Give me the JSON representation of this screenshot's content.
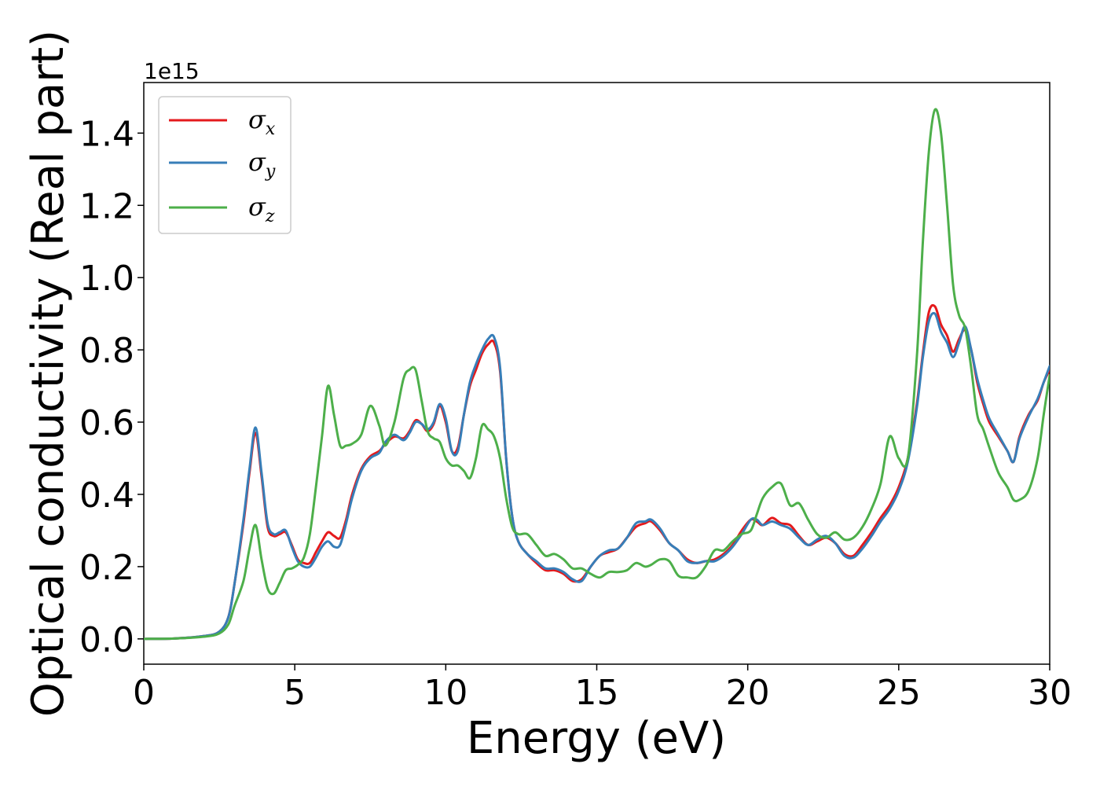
{
  "chart_data": {
    "type": "line",
    "xlabel": "Energy (eV)",
    "ylabel": "Optical conductivity (Real part)",
    "y_offset_label": "1e15",
    "xlim": [
      0,
      30
    ],
    "ylim": [
      -0.07,
      1.54
    ],
    "xticks": [
      0,
      5,
      10,
      15,
      20,
      25,
      30
    ],
    "xtick_labels": [
      "0",
      "5",
      "10",
      "15",
      "20",
      "25",
      "30"
    ],
    "yticks": [
      0.0,
      0.2,
      0.4,
      0.6,
      0.8,
      1.0,
      1.2,
      1.4
    ],
    "ytick_labels": [
      "0.0",
      "0.2",
      "0.4",
      "0.6",
      "0.8",
      "1.0",
      "1.2",
      "1.4"
    ],
    "grid": false,
    "legend_position": "top-left",
    "series": [
      {
        "name": "σx",
        "symbol": "σ",
        "subscript": "x",
        "color": "#e41a1c",
        "x": [
          0,
          1,
          2,
          2.5,
          2.8,
          3.0,
          3.3,
          3.5,
          3.7,
          3.9,
          4.1,
          4.3,
          4.5,
          4.7,
          4.9,
          5.1,
          5.3,
          5.5,
          5.7,
          5.9,
          6.1,
          6.3,
          6.5,
          6.7,
          6.9,
          7.2,
          7.5,
          7.8,
          8.0,
          8.3,
          8.6,
          8.8,
          9.0,
          9.2,
          9.4,
          9.6,
          9.8,
          10.0,
          10.2,
          10.4,
          10.6,
          10.8,
          11.0,
          11.2,
          11.4,
          11.6,
          11.8,
          12.0,
          12.2,
          12.4,
          12.7,
          13.0,
          13.3,
          13.6,
          13.9,
          14.2,
          14.5,
          14.8,
          15.1,
          15.4,
          15.7,
          16.0,
          16.3,
          16.6,
          16.8,
          17.1,
          17.4,
          17.7,
          18.0,
          18.3,
          18.6,
          18.9,
          19.2,
          19.5,
          19.8,
          20.1,
          20.3,
          20.5,
          20.8,
          21.1,
          21.4,
          21.7,
          22.0,
          22.3,
          22.6,
          22.9,
          23.2,
          23.5,
          23.8,
          24.1,
          24.4,
          24.7,
          25.0,
          25.3,
          25.6,
          25.8,
          26.0,
          26.2,
          26.4,
          26.6,
          26.8,
          27.0,
          27.2,
          27.4,
          27.6,
          27.8,
          28.0,
          28.3,
          28.6,
          28.8,
          29.0,
          29.3,
          29.6,
          29.8,
          30.0
        ],
        "y": [
          0.0,
          0.001,
          0.008,
          0.02,
          0.06,
          0.15,
          0.32,
          0.46,
          0.57,
          0.45,
          0.31,
          0.285,
          0.29,
          0.295,
          0.26,
          0.22,
          0.21,
          0.21,
          0.24,
          0.27,
          0.295,
          0.285,
          0.28,
          0.33,
          0.4,
          0.47,
          0.505,
          0.52,
          0.54,
          0.56,
          0.555,
          0.575,
          0.605,
          0.595,
          0.575,
          0.595,
          0.645,
          0.6,
          0.52,
          0.53,
          0.62,
          0.7,
          0.745,
          0.79,
          0.815,
          0.82,
          0.74,
          0.5,
          0.34,
          0.27,
          0.235,
          0.21,
          0.19,
          0.19,
          0.18,
          0.16,
          0.165,
          0.2,
          0.23,
          0.24,
          0.25,
          0.28,
          0.31,
          0.32,
          0.325,
          0.3,
          0.265,
          0.245,
          0.22,
          0.21,
          0.215,
          0.22,
          0.235,
          0.26,
          0.3,
          0.33,
          0.325,
          0.315,
          0.335,
          0.32,
          0.315,
          0.285,
          0.26,
          0.27,
          0.28,
          0.265,
          0.235,
          0.23,
          0.26,
          0.295,
          0.335,
          0.37,
          0.42,
          0.5,
          0.65,
          0.79,
          0.905,
          0.92,
          0.87,
          0.84,
          0.795,
          0.83,
          0.855,
          0.8,
          0.71,
          0.65,
          0.6,
          0.56,
          0.52,
          0.49,
          0.56,
          0.62,
          0.66,
          0.71,
          0.745
        ]
      },
      {
        "name": "σy",
        "symbol": "σ",
        "subscript": "y",
        "color": "#377eb8",
        "x": [
          0,
          1,
          2,
          2.5,
          2.8,
          3.0,
          3.3,
          3.5,
          3.7,
          3.9,
          4.1,
          4.3,
          4.5,
          4.7,
          4.9,
          5.1,
          5.3,
          5.5,
          5.7,
          5.9,
          6.1,
          6.3,
          6.5,
          6.7,
          6.9,
          7.2,
          7.5,
          7.8,
          8.0,
          8.3,
          8.6,
          8.8,
          9.0,
          9.2,
          9.4,
          9.6,
          9.8,
          10.0,
          10.2,
          10.4,
          10.6,
          10.8,
          11.0,
          11.2,
          11.4,
          11.6,
          11.8,
          12.0,
          12.2,
          12.4,
          12.7,
          13.0,
          13.3,
          13.6,
          13.9,
          14.2,
          14.5,
          14.8,
          15.1,
          15.4,
          15.7,
          16.0,
          16.3,
          16.6,
          16.8,
          17.1,
          17.4,
          17.7,
          18.0,
          18.3,
          18.6,
          18.9,
          19.2,
          19.5,
          19.8,
          20.1,
          20.3,
          20.5,
          20.8,
          21.1,
          21.4,
          21.7,
          22.0,
          22.3,
          22.6,
          22.9,
          23.2,
          23.5,
          23.8,
          24.1,
          24.4,
          24.7,
          25.0,
          25.3,
          25.6,
          25.8,
          26.0,
          26.2,
          26.4,
          26.6,
          26.8,
          27.0,
          27.2,
          27.4,
          27.6,
          27.8,
          28.0,
          28.3,
          28.6,
          28.8,
          29.0,
          29.3,
          29.6,
          29.8,
          30.0
        ],
        "y": [
          0.0,
          0.001,
          0.008,
          0.02,
          0.06,
          0.15,
          0.33,
          0.47,
          0.585,
          0.46,
          0.32,
          0.29,
          0.295,
          0.3,
          0.255,
          0.215,
          0.2,
          0.2,
          0.225,
          0.255,
          0.27,
          0.255,
          0.26,
          0.32,
          0.39,
          0.465,
          0.5,
          0.515,
          0.545,
          0.565,
          0.55,
          0.57,
          0.6,
          0.595,
          0.58,
          0.6,
          0.65,
          0.61,
          0.52,
          0.52,
          0.62,
          0.71,
          0.76,
          0.8,
          0.83,
          0.835,
          0.75,
          0.5,
          0.34,
          0.27,
          0.235,
          0.215,
          0.195,
          0.195,
          0.185,
          0.165,
          0.16,
          0.2,
          0.23,
          0.245,
          0.25,
          0.28,
          0.32,
          0.325,
          0.33,
          0.305,
          0.265,
          0.245,
          0.215,
          0.21,
          0.215,
          0.215,
          0.23,
          0.255,
          0.29,
          0.33,
          0.33,
          0.315,
          0.325,
          0.315,
          0.305,
          0.28,
          0.26,
          0.275,
          0.285,
          0.265,
          0.23,
          0.225,
          0.25,
          0.285,
          0.325,
          0.36,
          0.41,
          0.49,
          0.64,
          0.78,
          0.88,
          0.9,
          0.85,
          0.82,
          0.78,
          0.82,
          0.865,
          0.8,
          0.72,
          0.66,
          0.61,
          0.565,
          0.52,
          0.49,
          0.555,
          0.615,
          0.665,
          0.71,
          0.755
        ]
      },
      {
        "name": "σz",
        "symbol": "σ",
        "subscript": "z",
        "color": "#4daf4a",
        "x": [
          0,
          1,
          2,
          2.5,
          2.8,
          3.0,
          3.3,
          3.5,
          3.7,
          3.9,
          4.1,
          4.3,
          4.5,
          4.7,
          4.9,
          5.1,
          5.3,
          5.5,
          5.7,
          5.9,
          6.1,
          6.3,
          6.5,
          6.7,
          6.9,
          7.2,
          7.5,
          7.8,
          8.0,
          8.3,
          8.6,
          8.8,
          9.0,
          9.2,
          9.4,
          9.6,
          9.8,
          10.0,
          10.2,
          10.4,
          10.6,
          10.8,
          11.0,
          11.2,
          11.4,
          11.6,
          11.8,
          12.0,
          12.2,
          12.4,
          12.7,
          13.0,
          13.3,
          13.6,
          13.9,
          14.2,
          14.5,
          14.8,
          15.1,
          15.4,
          15.7,
          16.0,
          16.3,
          16.6,
          16.8,
          17.1,
          17.4,
          17.7,
          18.0,
          18.3,
          18.6,
          18.9,
          19.2,
          19.5,
          19.8,
          20.1,
          20.3,
          20.5,
          20.8,
          21.1,
          21.4,
          21.7,
          22.0,
          22.3,
          22.6,
          22.9,
          23.2,
          23.5,
          23.8,
          24.1,
          24.4,
          24.7,
          25.0,
          25.3,
          25.6,
          25.8,
          26.0,
          26.2,
          26.4,
          26.6,
          26.8,
          27.0,
          27.2,
          27.4,
          27.6,
          27.8,
          28.0,
          28.3,
          28.6,
          28.8,
          29.0,
          29.3,
          29.6,
          29.8,
          30.0
        ],
        "y": [
          0.0,
          0.001,
          0.006,
          0.015,
          0.04,
          0.09,
          0.16,
          0.25,
          0.315,
          0.22,
          0.14,
          0.125,
          0.155,
          0.19,
          0.195,
          0.205,
          0.225,
          0.29,
          0.42,
          0.56,
          0.7,
          0.62,
          0.535,
          0.535,
          0.54,
          0.565,
          0.645,
          0.59,
          0.535,
          0.6,
          0.72,
          0.745,
          0.745,
          0.66,
          0.575,
          0.555,
          0.545,
          0.5,
          0.48,
          0.48,
          0.465,
          0.445,
          0.5,
          0.59,
          0.58,
          0.56,
          0.5,
          0.39,
          0.31,
          0.29,
          0.29,
          0.26,
          0.23,
          0.235,
          0.22,
          0.195,
          0.195,
          0.18,
          0.17,
          0.185,
          0.185,
          0.19,
          0.21,
          0.2,
          0.205,
          0.22,
          0.215,
          0.175,
          0.17,
          0.17,
          0.2,
          0.245,
          0.245,
          0.27,
          0.29,
          0.3,
          0.345,
          0.39,
          0.42,
          0.43,
          0.37,
          0.375,
          0.33,
          0.29,
          0.28,
          0.295,
          0.275,
          0.28,
          0.31,
          0.36,
          0.43,
          0.56,
          0.5,
          0.5,
          0.78,
          1.1,
          1.35,
          1.465,
          1.4,
          1.2,
          0.98,
          0.895,
          0.86,
          0.75,
          0.62,
          0.58,
          0.53,
          0.46,
          0.42,
          0.385,
          0.385,
          0.41,
          0.5,
          0.62,
          0.73
        ]
      }
    ]
  }
}
